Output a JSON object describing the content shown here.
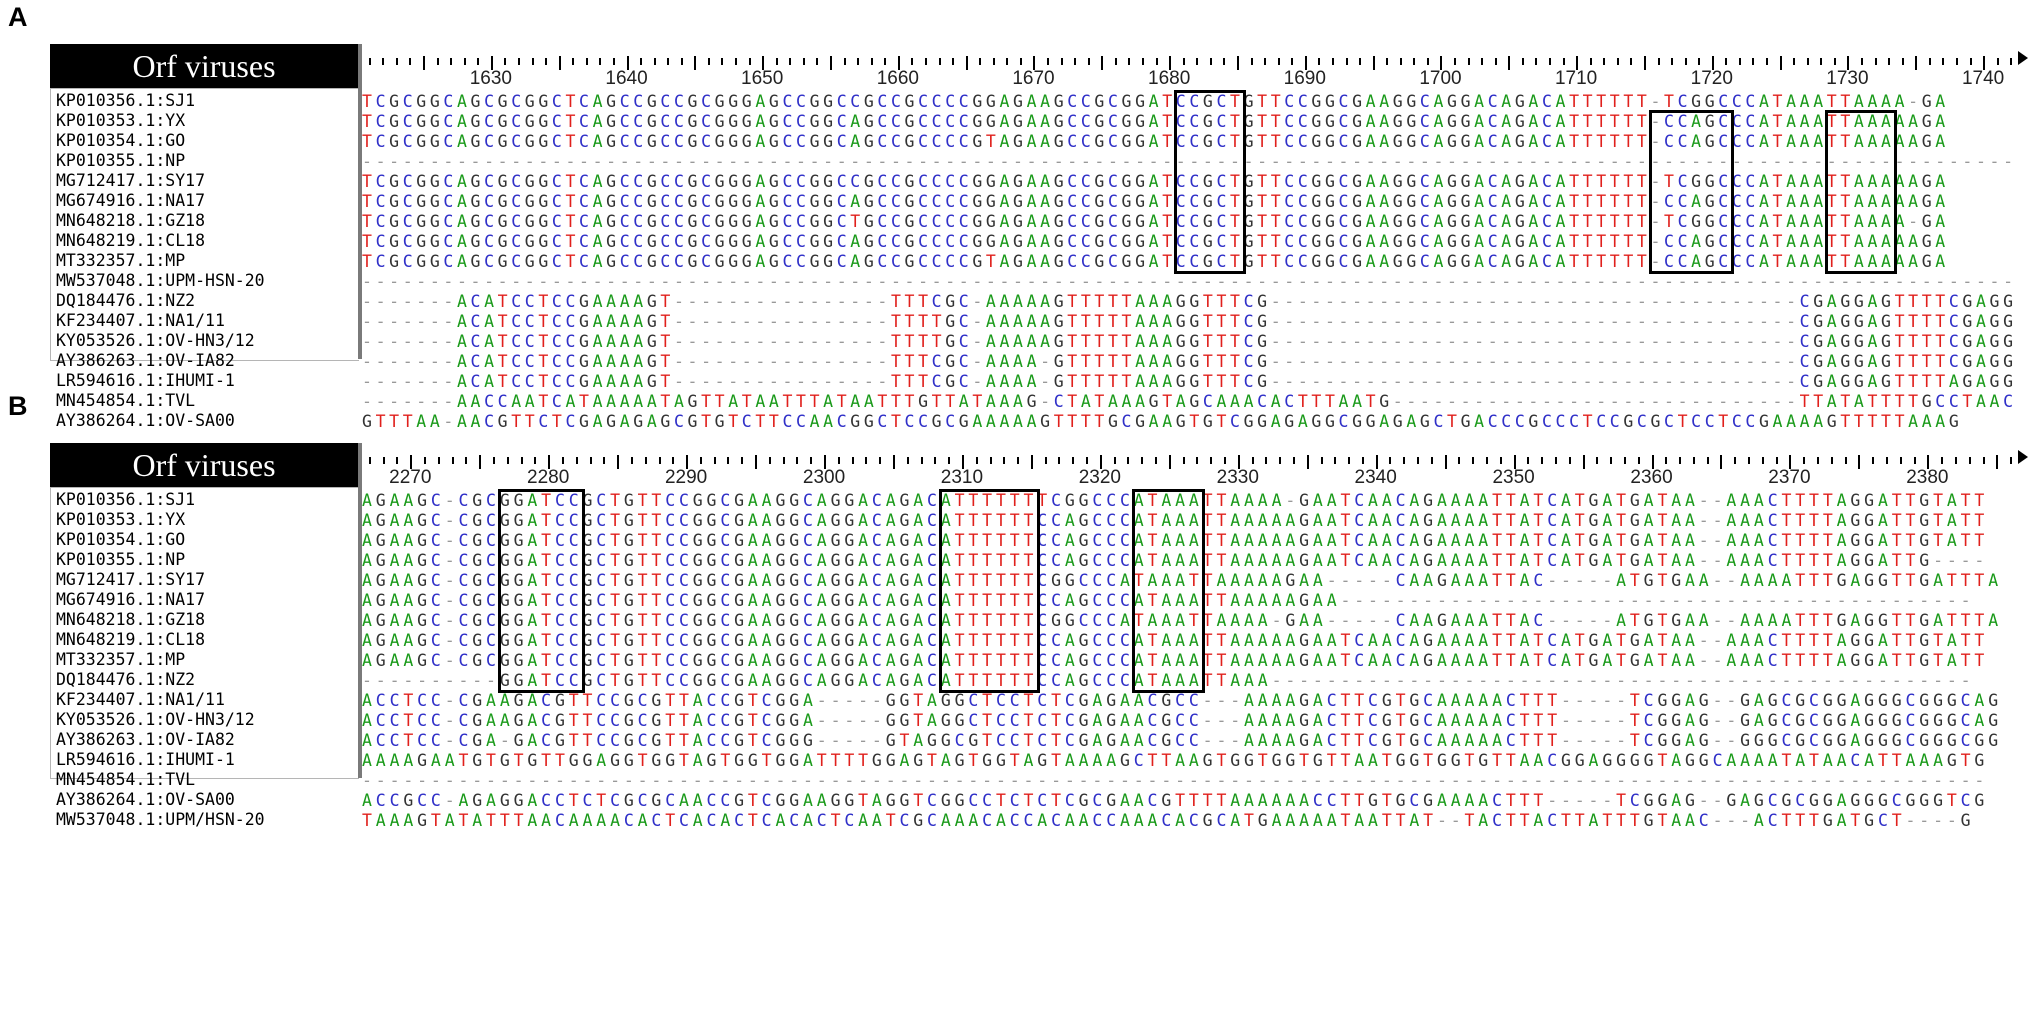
{
  "panels": [
    {
      "letter": "A",
      "title": "Orf viruses",
      "ruler": {
        "first": 1621,
        "last": 1742,
        "labels": [
          1630,
          1640,
          1650,
          1660,
          1670,
          1680,
          1690,
          1700,
          1710,
          1720,
          1730,
          1740
        ]
      },
      "names": [
        "KP010356.1:SJ1",
        "KP010353.1:YX",
        "KP010354.1:GO",
        "KP010355.1:NP",
        "MG712417.1:SY17",
        "MG674916.1:NA17",
        "MN648218.1:GZ18",
        "MN648219.1:CL18",
        "MT332357.1:MP",
        "MW537048.1:UPM-HSN-20",
        "DQ184476.1:NZ2",
        "KF234407.1:NA1/11",
        "KY053526.1:OV-HN3/12",
        "AY386263.1:OV-IA82",
        "LR594616.1:IHUMI-1",
        "MN454854.1:TVL",
        "AY386264.1:OV-SA00"
      ],
      "sequences": [
        "TCGCGGCAGCGCGGCTCAGCCGCCGCGGGAGCCGGCCGCCGCCCCGGAGAAGCCGCGGATCCGCTGTTCCGGCGAAGGCAGGACAGACATTTTTT-TCGGCCCATAAATTAAAA-GA",
        "TCGCGGCAGCGCGGCTCAGCCGCCGCGGGAGCCGGCAGCCGCCCCGGAGAAGCCGCGGATCCGCTGTTCCGGCGAAGGCAGGACAGACATTTTTT-CCAGCCCATAAATTAAAAAGA",
        "TCGCGGCAGCGCGGCTCAGCCGCCGCGGGAGCCGGCAGCCGCCCCGTAGAAGCCGCGGATCCGCTGTTCCGGCGAAGGCAGGACAGACATTTTTT-CCAGCCCATAAATTAAAAAGA",
        "--------------------------------------------------------------------------------------------------------------------------",
        "TCGCGGCAGCGCGGCTCAGCCGCCGCGGGAGCCGGCCGCCGCCCCGGAGAAGCCGCGGATCCGCTGTTCCGGCGAAGGCAGGACAGACATTTTTT-TCGGCCCATAAATTAAAAAGA",
        "TCGCGGCAGCGCGGCTCAGCCGCCGCGGGAGCCGGCAGCCGCCCCGGAGAAGCCGCGGATCCGCTGTTCCGGCGAAGGCAGGACAGACATTTTTT-CCAGCCCATAAATTAAAAAGA",
        "TCGCGGCAGCGCGGCTCAGCCGCCGCGGGAGCCGGCTGCCGCCCCGGAGAAGCCGCGGATCCGCTGTTCCGGCGAAGGCAGGACAGACATTTTTT-TCGGCCCATAAATTAAAA-GA",
        "TCGCGGCAGCGCGGCTCAGCCGCCGCGGGAGCCGGCAGCCGCCCCGGAGAAGCCGCGGATCCGCTGTTCCGGCGAAGGCAGGACAGACATTTTTT-CCAGCCCATAAATTAAAAAGA",
        "TCGCGGCAGCGCGGCTCAGCCGCCGCGGGAGCCGGCAGCCGCCCCGTAGAAGCCGCGGATCCGCTGTTCCGGCGAAGGCAGGACAGACATTTTTT-CCAGCCCATAAATTAAAAAGA",
        "--------------------------------------------------------------------------------------------------------------------------",
        "-------ACATCCTCCGAAAAGT----------------TTTCGC-AAAAAGTTTTTAAAGGTTTCG---------------------------------------CGAGGAGTTTTCGAGG",
        "-------ACATCCTCCGAAAAGT----------------TTTTGC-AAAAAGTTTTTAAAGGTTTCG---------------------------------------CGAGGAGTTTTCGAGG",
        "-------ACATCCTCCGAAAAGT----------------TTTTGC-AAAAAGTTTTTAAAGGTTTCG---------------------------------------CGAGGAGTTTTCGAGG",
        "-------ACATCCTCCGAAAAGT----------------TTTCGC-AAAA-GTTTTTAAAGGTTTCG---------------------------------------CGAGGAGTTTTCGAGG",
        "-------ACATCCTCCGAAAAGT----------------TTTCGC-AAAA-GTTTTTAAAGGTTTCG---------------------------------------CGAGGAGTTTTAGAGG",
        "-------AACCAATCATAAAAATAGTTATAATTTATAATTTGTTATAAAG-CTATAAAGTAGCAAACACTTTAATG------------------------------TTATATTTTGCCTAAC",
        "GTTTAA-AACGTTCTCGAGAGAGCGTGTCTTCCAACGGCTCCGCGAAAAAGTTTTGCGAAGTGTCGGAGAGGCGGAGAGCTGACCCGCCCTCCGCGCTCCTCCGAAAAGTTTTTAAAG"
      ]
    },
    {
      "letter": "B",
      "title": "Orf viruses",
      "ruler": {
        "first": 2267,
        "last": 2386,
        "labels": [
          2270,
          2280,
          2290,
          2300,
          2310,
          2320,
          2330,
          2340,
          2350,
          2360,
          2370,
          2380
        ]
      },
      "names": [
        "KP010356.1:SJ1",
        "KP010353.1:YX",
        "KP010354.1:GO",
        "KP010355.1:NP",
        "MG712417.1:SY17",
        "MG674916.1:NA17",
        "MN648218.1:GZ18",
        "MN648219.1:CL18",
        "MT332357.1:MP",
        "DQ184476.1:NZ2",
        "KF234407.1:NA1/11",
        "KY053526.1:OV-HN3/12",
        "AY386263.1:OV-IA82",
        "LR594616.1:IHUMI-1",
        "MN454854.1:TVL",
        "AY386264.1:OV-SA00",
        "MW537048.1:UPM/HSN-20"
      ],
      "sequences": [
        "AGAAGC-CGCGGATCCGCTGTTCCGGCGAAGGCAGGACAGACATTTTTTTCGGCCCATAAATTAAAA-GAATCAACAGAAAATTATCATGATGATAA--AAACTTTTAGGATTGTATT",
        "AGAAGC-CGCGGATCCGCTGTTCCGGCGAAGGCAGGACAGACATTTTTTCCAGCCCATAAATTAAAAAGAATCAACAGAAAATTATCATGATGATAA--AAACTTTTAGGATTGTATT",
        "AGAAGC-CGCGGATCCGCTGTTCCGGCGAAGGCAGGACAGACATTTTTTCCAGCCCATAAATTAAAAAGAATCAACAGAAAATTATCATGATGATAA--AAACTTTTAGGATTGTATT",
        "AGAAGC-CGCGGATCCGCTGTTCCGGCGAAGGCAGGACAGACATTTTTTCCAGCCCATAAATTAAAAAGAATCAACAGAAAATTATCATGATGATAA--AAACTTTTAGGATTG----",
        "AGAAGC-CGCGGATCCGCTGTTCCGGCGAAGGCAGGACAGACATTTTTTCGGCCCATAAATTAAAAAGAA-----CAAGAAATTAC-----ATGTGAA--AAAATTTGAGGTTGATTTA",
        "AGAAGC-CGCGGATCCGCTGTTCCGGCGAAGGCAGGACAGACATTTTTTCCAGCCCATAAATTAAAAAGAA----------------------------------------------",
        "AGAAGC-CGCGGATCCGCTGTTCCGGCGAAGGCAGGACAGACATTTTTTCGGCCCATAAATTAAAA-GAA-----CAAGAAATTAC-----ATGTGAA--AAAATTTGAGGTTGATTTA",
        "AGAAGC-CGCGGATCCGCTGTTCCGGCGAAGGCAGGACAGACATTTTTTCCAGCCCATAAATTAAAAAGAATCAACAGAAAATTATCATGATGATAA--AAACTTTTAGGATTGTATT",
        "AGAAGC-CGCGGATCCGCTGTTCCGGCGAAGGCAGGACAGACATTTTTTCCAGCCCATAAATTAAAAAGAATCAACAGAAAATTATCATGATGATAA--AAACTTTTAGGATTGTATT",
        "----------GGATCCGCTGTTCCGGCGAAGGCAGGACAGACATTTTTTCCAGCCCATAAATTAAA---------------------------------------------------",
        "ACCTCC-CGAAGACGTTCCGCGTTACCGTCGGA-----GGTAGGCTCCTCTCGAGAACGCC---AAAAGACTTCGTGCAAAAACTTT-----TCGGAG--GAGCGCGGAGGGCGGGCAG",
        "ACCTCC-CGAAGACGTTCCGCGTTACCGTCGGA-----GGTAGGCTCCTCTCGAGAACGCC---AAAAGACTTCGTGCAAAAACTTT-----TCGGAG--GAGCGCGGAGGGCGGGCAG",
        "ACCTCC-CGA-GACGTTCCGCGTTACCGTCGGG-----GTAGGCGTCCTCTCGAGAACGCC---AAAAGACTTCGTGCAAAAACTTT-----TCGGAG--GGGCGCGGAGGGCGGGCGG",
        "AAAAGAATGTGTGTTGGAGGTGGTAGTGGTGGATTTTGGAGTAGTGGTAGTAAAAGCTTAAGTGGTGGTGTTAATGGTGGTGTTAACGGAGGGGTAGGCAAAATATAACATTAAAGTG",
        "----------------------------------------------------------------------------------------------------------------------",
        "ACCGCC-AGAGGACCTCTCGCGCAACCGTCGGAAGGTAGGTCGGCCTCTCTCGCGAACGTTTTAAAAAACCTTGTGCGAAAACTTT-----TCGGAG--GAGCGCGGAGGGCGGGTCG",
        "TAAAGTATATTTAACAAAACACTCACACTCACACTCAATCGCAAACACCACAACCAAACACGCATGAAAAATAATTAT--TACTTACTTATTTGTAAC---ACTTTGATGCT----G"
      ]
    }
  ]
}
